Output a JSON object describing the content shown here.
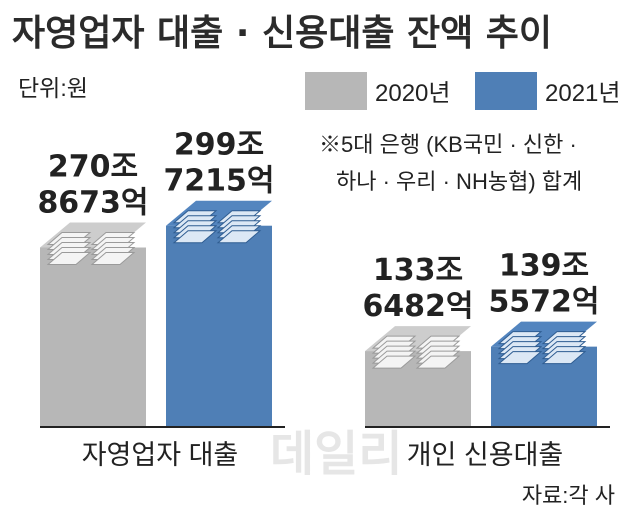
{
  "chart_data": {
    "type": "bar",
    "title": "자영업자 대출 · 신용대출 잔액 추이",
    "unit_label": "단위:원",
    "categories": [
      "자영업자 대출",
      "개인 신용대출"
    ],
    "series": [
      {
        "name": "2020년",
        "values": [
          270.8673,
          133.6482
        ],
        "labels": [
          "270조|8673억",
          "133조|6482억"
        ],
        "color": "#b7b7b7"
      },
      {
        "name": "2021년",
        "values": [
          299.7215,
          139.5572
        ],
        "labels": [
          "299조|7215억",
          "139조|5572억"
        ],
        "color": "#4f7fb6"
      }
    ],
    "note": [
      "※5대 은행 (KB국민 · 신한 ·",
      "하나 · 우리 · NH농협) 합계"
    ],
    "source": "자료:각 사",
    "watermark": "데일리",
    "legend_position": "top-right",
    "grid": false
  }
}
